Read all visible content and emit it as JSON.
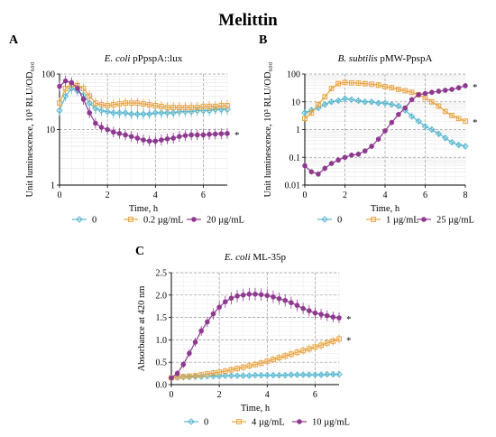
{
  "figure_title": "Melittin",
  "chart_data": [
    {
      "panel": "A",
      "type": "line",
      "title_italic": "E. coli",
      "title_rest": " pPpspA::lux",
      "xlabel": "Time, h",
      "ylabel": "Unit luminescence, 10³ RLU/OD₆₀₀",
      "yscale": "log",
      "xlim": [
        0,
        7
      ],
      "ylim": [
        1,
        100
      ],
      "xticks": [
        "0",
        "2",
        "4",
        "6"
      ],
      "yticks": [
        "1",
        "10",
        "100"
      ],
      "x": [
        0,
        0.25,
        0.5,
        0.75,
        1,
        1.25,
        1.5,
        1.75,
        2,
        2.25,
        2.5,
        2.75,
        3,
        3.25,
        3.5,
        3.75,
        4,
        4.25,
        4.5,
        4.75,
        5,
        5.25,
        5.5,
        5.75,
        6,
        6.25,
        6.5,
        6.75,
        7
      ],
      "series": [
        {
          "name": "0",
          "color": "#56b6cf",
          "marker": "diamond",
          "values": [
            22,
            40,
            55,
            50,
            42,
            30,
            24,
            22,
            21,
            20,
            20,
            20,
            19,
            19,
            19,
            19,
            20,
            20,
            20,
            20,
            21,
            21,
            21,
            22,
            22,
            22,
            23,
            23,
            23
          ]
        },
        {
          "name": "0.2 µg/mL",
          "color": "#e8a33d",
          "marker": "square",
          "values": [
            30,
            55,
            65,
            62,
            55,
            40,
            30,
            28,
            27,
            28,
            29,
            30,
            30,
            30,
            29,
            28,
            27,
            26,
            25,
            25,
            25,
            25,
            25,
            25,
            26,
            26,
            26,
            27,
            27
          ]
        },
        {
          "name": "20 µg/mL",
          "color": "#8e3b8f",
          "marker": "circle",
          "values": [
            60,
            75,
            70,
            55,
            35,
            20,
            13,
            11,
            10,
            9,
            8.5,
            8,
            7.5,
            7,
            6.5,
            6.2,
            6.2,
            6.5,
            6.8,
            7,
            7.5,
            7.8,
            8,
            8,
            8,
            8.2,
            8.3,
            8.4,
            8.5
          ]
        }
      ],
      "annotation": "*"
    },
    {
      "panel": "B",
      "type": "line",
      "title_italic": "B. subtilis",
      "title_rest": " pMW-PpspA",
      "xlabel": "Time, h",
      "ylabel": "Unit luminescence, 10³ RLU/OD₆₀₀",
      "yscale": "log",
      "xlim": [
        0,
        8
      ],
      "ylim": [
        0.01,
        100
      ],
      "xticks": [
        "0",
        "2",
        "4",
        "6",
        "8"
      ],
      "yticks": [
        "0.01",
        "0.1",
        "1",
        "10",
        "100"
      ],
      "x": [
        0,
        0.33,
        0.67,
        1,
        1.33,
        1.67,
        2,
        2.33,
        2.67,
        3,
        3.33,
        3.67,
        4,
        4.33,
        4.67,
        5,
        5.33,
        5.67,
        6,
        6.33,
        6.67,
        7,
        7.33,
        7.67,
        8
      ],
      "series": [
        {
          "name": "0",
          "color": "#56b6cf",
          "marker": "diamond",
          "values": [
            4,
            5,
            6,
            8,
            10,
            11,
            13,
            12,
            11,
            10,
            10,
            9,
            9,
            8,
            7,
            5,
            3,
            2,
            1.3,
            1,
            0.7,
            0.5,
            0.35,
            0.28,
            0.25
          ]
        },
        {
          "name": "1 µg/mL",
          "color": "#e8a33d",
          "marker": "square",
          "values": [
            2.5,
            4,
            8,
            15,
            30,
            45,
            50,
            48,
            47,
            45,
            43,
            40,
            35,
            32,
            28,
            25,
            22,
            18,
            14,
            10,
            7,
            4.5,
            3.2,
            2.5,
            2
          ]
        },
        {
          "name": "25 µg/mL",
          "color": "#8e3b8f",
          "marker": "circle",
          "values": [
            0.05,
            0.03,
            0.025,
            0.04,
            0.06,
            0.08,
            0.1,
            0.12,
            0.13,
            0.17,
            0.25,
            0.45,
            0.9,
            1.8,
            3.5,
            6,
            12,
            18,
            20,
            22,
            24,
            26,
            28,
            32,
            38
          ]
        }
      ],
      "annotation": "*"
    },
    {
      "panel": "C",
      "type": "line",
      "title_italic": "E. coli",
      "title_rest": " ML-35p",
      "xlabel": "Time, h",
      "ylabel": "Absorbance at 420 nm",
      "yscale": "linear",
      "xlim": [
        0,
        7
      ],
      "ylim": [
        0,
        2.5
      ],
      "xticks": [
        "0",
        "2",
        "4",
        "6"
      ],
      "yticks": [
        "0.0",
        "0.5",
        "1.0",
        "1.5",
        "2.0",
        "2.5"
      ],
      "x": [
        0,
        0.25,
        0.5,
        0.75,
        1,
        1.25,
        1.5,
        1.75,
        2,
        2.25,
        2.5,
        2.75,
        3,
        3.25,
        3.5,
        3.75,
        4,
        4.25,
        4.5,
        4.75,
        5,
        5.25,
        5.5,
        5.75,
        6,
        6.25,
        6.5,
        6.75,
        7
      ],
      "series": [
        {
          "name": "0",
          "color": "#56b6cf",
          "marker": "diamond",
          "values": [
            0.15,
            0.16,
            0.17,
            0.17,
            0.18,
            0.18,
            0.19,
            0.19,
            0.19,
            0.2,
            0.2,
            0.2,
            0.2,
            0.2,
            0.21,
            0.21,
            0.21,
            0.21,
            0.21,
            0.21,
            0.22,
            0.22,
            0.22,
            0.22,
            0.22,
            0.22,
            0.23,
            0.23,
            0.23
          ]
        },
        {
          "name": "4 µg/mL",
          "color": "#e8a33d",
          "marker": "square",
          "values": [
            0.15,
            0.17,
            0.18,
            0.19,
            0.2,
            0.22,
            0.24,
            0.26,
            0.28,
            0.3,
            0.33,
            0.36,
            0.39,
            0.42,
            0.45,
            0.48,
            0.52,
            0.56,
            0.6,
            0.64,
            0.68,
            0.72,
            0.76,
            0.8,
            0.84,
            0.88,
            0.93,
            0.97,
            1.02
          ]
        },
        {
          "name": "10 µg/mL",
          "color": "#8e3b8f",
          "marker": "circle",
          "values": [
            0.15,
            0.25,
            0.45,
            0.7,
            0.95,
            1.2,
            1.4,
            1.58,
            1.73,
            1.85,
            1.93,
            1.98,
            2.0,
            2.02,
            2.02,
            2.01,
            1.99,
            1.96,
            1.92,
            1.88,
            1.83,
            1.77,
            1.7,
            1.65,
            1.6,
            1.57,
            1.54,
            1.51,
            1.49
          ]
        }
      ],
      "annotation": "*"
    }
  ]
}
